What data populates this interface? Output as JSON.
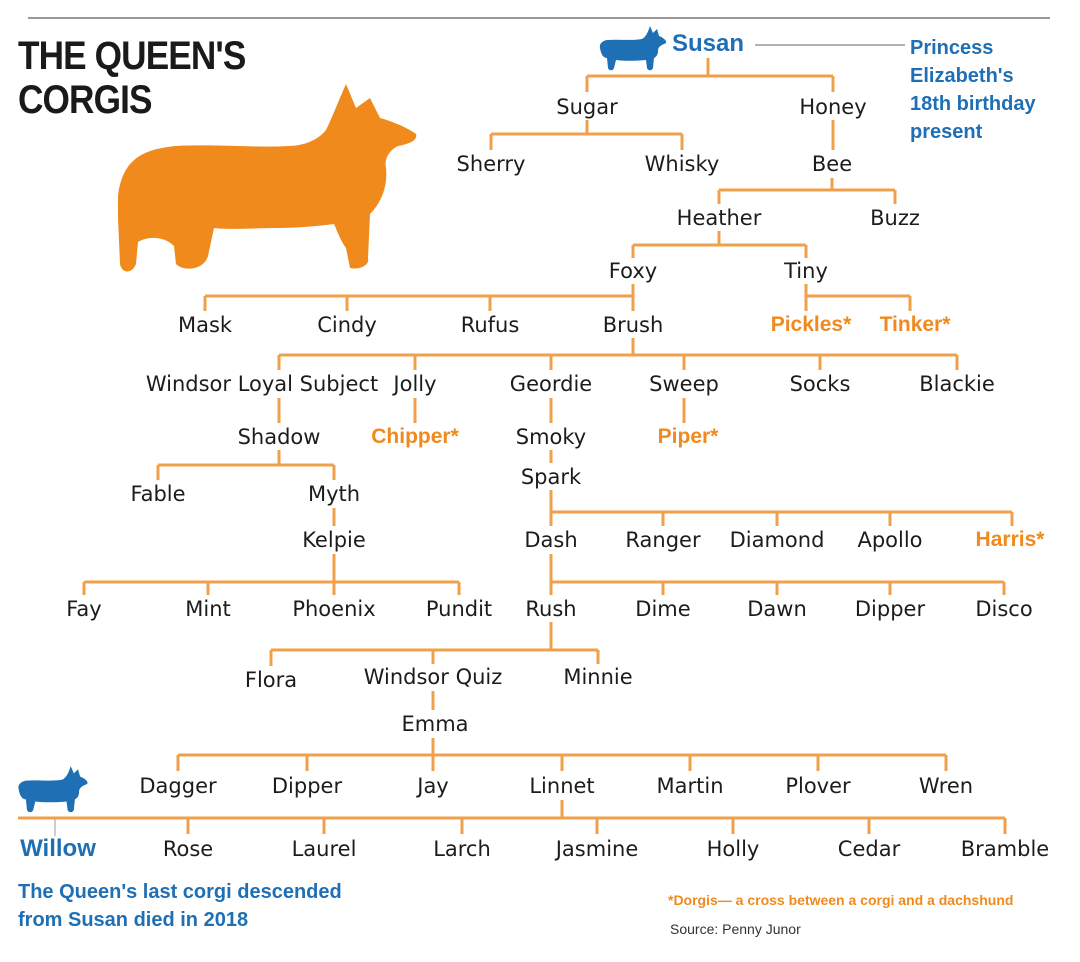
{
  "title": {
    "line1": "THE QUEEN'S",
    "line2": "CORGIS"
  },
  "colors": {
    "line": "#f0a04b",
    "orange_corgi": "#f08a1c",
    "blue": "#1f6fb5",
    "text": "#1c1c1c"
  },
  "notes": {
    "susan": [
      "Princess",
      "Elizabeth's",
      "18th birthday",
      "present"
    ],
    "willow": [
      "The Queen's last corgi descended",
      "from Susan died in 2018"
    ]
  },
  "footnote": "*Dorgis— a cross between a corgi and a dachshund",
  "source": "Source: Penny Junor",
  "icons": [
    "orange-corgi-silhouette",
    "blue-corgi-icon-susan",
    "blue-corgi-icon-willow"
  ],
  "tree": {
    "susan": "Susan",
    "sugar": "Sugar",
    "honey": "Honey",
    "sherry": "Sherry",
    "whisky": "Whisky",
    "bee": "Bee",
    "heather": "Heather",
    "buzz": "Buzz",
    "foxy": "Foxy",
    "tiny": "Tiny",
    "mask": "Mask",
    "cindy": "Cindy",
    "rufus": "Rufus",
    "brush": "Brush",
    "pickles": "Pickles*",
    "tinker": "Tinker*",
    "windsor_loyal_subject": "Windsor Loyal Subject",
    "jolly": "Jolly",
    "geordie": "Geordie",
    "sweep": "Sweep",
    "socks": "Socks",
    "blackie": "Blackie",
    "shadow": "Shadow",
    "chipper": "Chipper*",
    "smoky": "Smoky",
    "piper": "Piper*",
    "fable": "Fable",
    "myth": "Myth",
    "spark": "Spark",
    "kelpie": "Kelpie",
    "dash": "Dash",
    "ranger": "Ranger",
    "diamond": "Diamond",
    "apollo": "Apollo",
    "harris": "Harris*",
    "fay": "Fay",
    "mint": "Mint",
    "phoenix": "Phoenix",
    "pundit": "Pundit",
    "rush": "Rush",
    "dime": "Dime",
    "dawn": "Dawn",
    "dipper1": "Dipper",
    "disco": "Disco",
    "flora": "Flora",
    "windsor_quiz": "Windsor Quiz",
    "minnie": "Minnie",
    "emma": "Emma",
    "dagger": "Dagger",
    "dipper2": "Dipper",
    "jay": "Jay",
    "linnet": "Linnet",
    "martin": "Martin",
    "plover": "Plover",
    "wren": "Wren",
    "willow": "Willow",
    "rose": "Rose",
    "laurel": "Laurel",
    "larch": "Larch",
    "jasmine": "Jasmine",
    "holly": "Holly",
    "cedar": "Cedar",
    "bramble": "Bramble"
  }
}
